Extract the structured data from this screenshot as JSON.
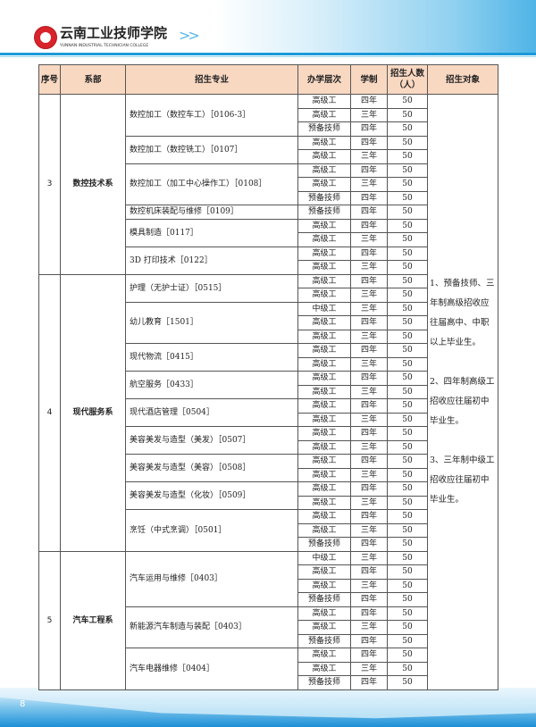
{
  "header": {
    "school_name": "云南工业技师学院",
    "school_name_en": "YUNNAN INDUSTRIAL TECHNICIAN COLLEGE",
    "arrows": ">>"
  },
  "colors": {
    "header_bg": "#f9d8c2",
    "accent": "#1a9ad9"
  },
  "table": {
    "columns": [
      "序号",
      "系部",
      "招生专业",
      "办学层次",
      "学制",
      "招生人数（人）",
      "招生对象"
    ],
    "notes": [
      "1、预备技师、三年制高级招收应往届高中、中职以上毕业生。",
      "2、四年制高级工招收应往届初中毕业生。",
      "3、三年制中级工招收应往届初中毕业生。"
    ],
    "departments": [
      {
        "seq": "3",
        "name": "数控技术系",
        "majors": [
          {
            "name": "数控加工（数控车工）［0106-3］",
            "rows": [
              [
                "高级工",
                "四年",
                "50"
              ],
              [
                "高级工",
                "三年",
                "50"
              ],
              [
                "预备技师",
                "四年",
                "50"
              ]
            ]
          },
          {
            "name": "数控加工（数控铣工）［0107］",
            "rows": [
              [
                "高级工",
                "四年",
                "50"
              ],
              [
                "高级工",
                "三年",
                "50"
              ]
            ]
          },
          {
            "name": "数控加工（加工中心操作工）［0108］",
            "rows": [
              [
                "高级工",
                "四年",
                "50"
              ],
              [
                "高级工",
                "三年",
                "50"
              ],
              [
                "预备技师",
                "四年",
                "50"
              ]
            ]
          },
          {
            "name": "数控机床装配与维修［0109］",
            "rows": [
              [
                "预备技师",
                "四年",
                "50"
              ]
            ]
          },
          {
            "name": "模具制造［0117］",
            "rows": [
              [
                "高级工",
                "四年",
                "50"
              ],
              [
                "高级工",
                "三年",
                "50"
              ]
            ]
          },
          {
            "name": "3D 打印技术［0122］",
            "rows": [
              [
                "高级工",
                "四年",
                "50"
              ],
              [
                "高级工",
                "三年",
                "50"
              ]
            ]
          }
        ]
      },
      {
        "seq": "4",
        "name": "现代服务系",
        "majors": [
          {
            "name": "护理（无护士证）［0515］",
            "rows": [
              [
                "高级工",
                "四年",
                "50"
              ],
              [
                "高级工",
                "三年",
                "50"
              ]
            ]
          },
          {
            "name": "幼儿教育［1501］",
            "rows": [
              [
                "中级工",
                "三年",
                "50"
              ],
              [
                "高级工",
                "四年",
                "50"
              ],
              [
                "高级工",
                "三年",
                "50"
              ]
            ]
          },
          {
            "name": "现代物流［0415］",
            "rows": [
              [
                "高级工",
                "四年",
                "50"
              ],
              [
                "高级工",
                "三年",
                "50"
              ]
            ]
          },
          {
            "name": "航空服务［0433］",
            "rows": [
              [
                "高级工",
                "四年",
                "50"
              ],
              [
                "高级工",
                "三年",
                "50"
              ]
            ]
          },
          {
            "name": "现代酒店管理［0504］",
            "rows": [
              [
                "高级工",
                "四年",
                "50"
              ],
              [
                "高级工",
                "三年",
                "50"
              ]
            ]
          },
          {
            "name": "美容美发与造型（美发）［0507］",
            "rows": [
              [
                "高级工",
                "四年",
                "50"
              ],
              [
                "高级工",
                "三年",
                "50"
              ]
            ]
          },
          {
            "name": "美容美发与造型（美容）［0508］",
            "rows": [
              [
                "高级工",
                "四年",
                "50"
              ],
              [
                "高级工",
                "三年",
                "50"
              ]
            ]
          },
          {
            "name": "美容美发与造型（化妆）［0509］",
            "rows": [
              [
                "高级工",
                "四年",
                "50"
              ],
              [
                "高级工",
                "三年",
                "50"
              ]
            ]
          },
          {
            "name": "烹饪（中式烹调）［0501］",
            "rows": [
              [
                "高级工",
                "四年",
                "50"
              ],
              [
                "高级工",
                "三年",
                "50"
              ],
              [
                "预备技师",
                "四年",
                "50"
              ]
            ]
          }
        ]
      },
      {
        "seq": "5",
        "name": "汽车工程系",
        "majors": [
          {
            "name": "汽车运用与维修［0403］",
            "rows": [
              [
                "中级工",
                "三年",
                "50"
              ],
              [
                "高级工",
                "四年",
                "50"
              ],
              [
                "高级工",
                "三年",
                "50"
              ],
              [
                "预备技师",
                "四年",
                "50"
              ]
            ]
          },
          {
            "name": "新能源汽车制造与装配［0403］",
            "rows": [
              [
                "高级工",
                "四年",
                "50"
              ],
              [
                "高级工",
                "三年",
                "50"
              ],
              [
                "预备技师",
                "四年",
                "50"
              ]
            ]
          },
          {
            "name": "汽车电器维修［0404］",
            "rows": [
              [
                "高级工",
                "四年",
                "50"
              ],
              [
                "高级工",
                "三年",
                "50"
              ],
              [
                "预备技师",
                "四年",
                "50"
              ]
            ]
          }
        ]
      }
    ]
  },
  "footer": {
    "page_number": "8"
  }
}
